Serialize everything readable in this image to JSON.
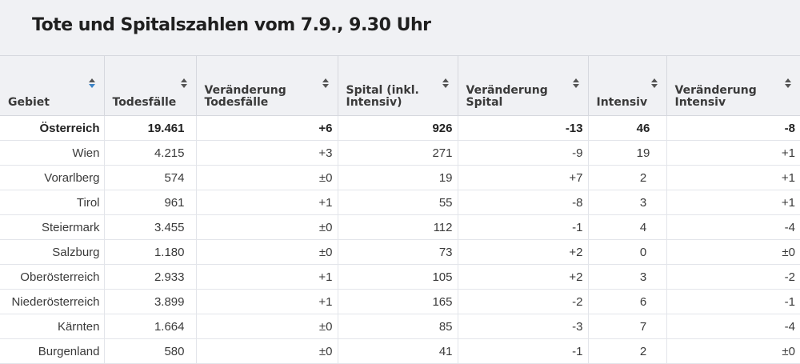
{
  "title": "Tote und Spitalszahlen vom 7.9., 9.30 Uhr",
  "columns": [
    {
      "label": "Gebiet",
      "sorted": true
    },
    {
      "label": "Todesfälle",
      "sorted": false
    },
    {
      "label": "Veränderung Todesfälle",
      "sorted": false
    },
    {
      "label": "Spital (inkl. Intensiv)",
      "sorted": false
    },
    {
      "label": "Veränderung Spital",
      "sorted": false
    },
    {
      "label": "Intensiv",
      "sorted": false
    },
    {
      "label": "Veränderung Intensiv",
      "sorted": false
    }
  ],
  "rows": [
    [
      "Österreich",
      "19.461",
      "+6",
      "926",
      "-13",
      "46",
      "-8"
    ],
    [
      "Wien",
      "4.215",
      "+3",
      "271",
      "-9",
      "19",
      "+1"
    ],
    [
      "Vorarlberg",
      "574",
      "±0",
      "19",
      "+7",
      "2",
      "+1"
    ],
    [
      "Tirol",
      "961",
      "+1",
      "55",
      "-8",
      "3",
      "+1"
    ],
    [
      "Steiermark",
      "3.455",
      "±0",
      "112",
      "-1",
      "4",
      "-4"
    ],
    [
      "Salzburg",
      "1.180",
      "±0",
      "73",
      "+2",
      "0",
      "±0"
    ],
    [
      "Oberösterreich",
      "2.933",
      "+1",
      "105",
      "+2",
      "3",
      "-2"
    ],
    [
      "Niederösterreich",
      "3.899",
      "+1",
      "165",
      "-2",
      "6",
      "-1"
    ],
    [
      "Kärnten",
      "1.664",
      "±0",
      "85",
      "-3",
      "7",
      "-4"
    ],
    [
      "Burgenland",
      "580",
      "±0",
      "41",
      "-1",
      "2",
      "±0"
    ]
  ],
  "colors": {
    "header_bg": "#f0f1f4",
    "text": "#333333",
    "sort_active": "#3b82c4",
    "sort_inactive": "#555555"
  },
  "icons": {
    "sort": "sort-arrows-icon"
  }
}
